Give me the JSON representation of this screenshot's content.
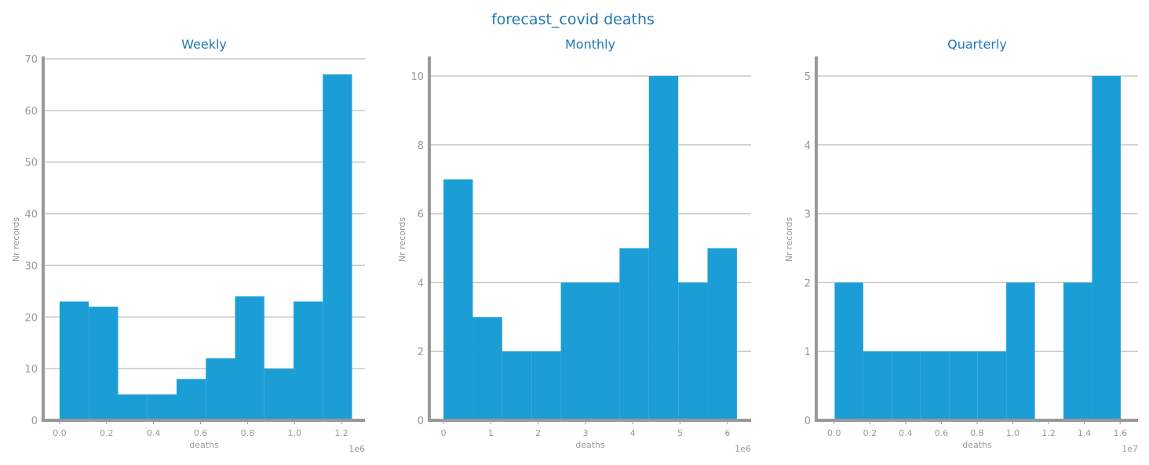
{
  "figure_title": "forecast_covid deaths",
  "colors": {
    "bar": "#1b9ed6",
    "title": "#1f77b4",
    "axis": "#999999",
    "grid": "#c8c8c8"
  },
  "chart_data": [
    {
      "type": "bar",
      "title": "Weekly",
      "xlabel": "deaths",
      "ylabel": "Nr records",
      "offset_label": "1e6",
      "xlim": [
        -0.07,
        1.3
      ],
      "ylim": [
        0,
        70
      ],
      "xticks": [
        0.0,
        0.2,
        0.4,
        0.6,
        0.8,
        1.0,
        1.2
      ],
      "xtick_labels": [
        "0.0",
        "0.2",
        "0.4",
        "0.6",
        "0.8",
        "1.0",
        "1.2"
      ],
      "yticks": [
        0,
        10,
        20,
        30,
        40,
        50,
        60,
        70
      ],
      "ytick_labels": [
        "0",
        "10",
        "20",
        "30",
        "40",
        "50",
        "60",
        "70"
      ],
      "bin_edges": [
        0.0,
        0.1245,
        0.249,
        0.3735,
        0.498,
        0.6225,
        0.747,
        0.8715,
        0.996,
        1.1205,
        1.245
      ],
      "values": [
        23,
        22,
        5,
        5,
        8,
        12,
        24,
        10,
        23,
        67
      ],
      "grid": "y"
    },
    {
      "type": "bar",
      "title": "Monthly",
      "xlabel": "deaths",
      "ylabel": "Nr records",
      "offset_label": "1e6",
      "xlim": [
        -0.3,
        6.5
      ],
      "ylim": [
        0,
        10.5
      ],
      "xticks": [
        0,
        1,
        2,
        3,
        4,
        5,
        6
      ],
      "xtick_labels": [
        "0",
        "1",
        "2",
        "3",
        "4",
        "5",
        "6"
      ],
      "yticks": [
        0,
        2,
        4,
        6,
        8,
        10
      ],
      "ytick_labels": [
        "0",
        "2",
        "4",
        "6",
        "8",
        "10"
      ],
      "bin_edges": [
        0.0,
        0.62,
        1.24,
        1.86,
        2.48,
        3.1,
        3.72,
        4.34,
        4.96,
        5.58,
        6.2
      ],
      "values": [
        7,
        3,
        2,
        2,
        4,
        4,
        5,
        10,
        4,
        5
      ],
      "grid": "y"
    },
    {
      "type": "bar",
      "title": "Quarterly",
      "xlabel": "deaths",
      "ylabel": "Nr records",
      "offset_label": "1e7",
      "xlim": [
        -0.1,
        1.7
      ],
      "ylim": [
        0,
        5.25
      ],
      "xticks": [
        0.0,
        0.2,
        0.4,
        0.6,
        0.8,
        1.0,
        1.2,
        1.4,
        1.6
      ],
      "xtick_labels": [
        "0.0",
        "0.2",
        "0.4",
        "0.6",
        "0.8",
        "1.0",
        "1.2",
        "1.4",
        "1.6"
      ],
      "yticks": [
        0,
        1,
        2,
        3,
        4,
        5
      ],
      "ytick_labels": [
        "0",
        "1",
        "2",
        "3",
        "4",
        "5"
      ],
      "bin_edges": [
        0.003,
        0.163,
        0.323,
        0.483,
        0.643,
        0.803,
        0.963,
        1.123,
        1.283,
        1.443,
        1.603
      ],
      "values": [
        2,
        1,
        1,
        1,
        1,
        1,
        2,
        0,
        2,
        5
      ],
      "grid": "y"
    }
  ]
}
